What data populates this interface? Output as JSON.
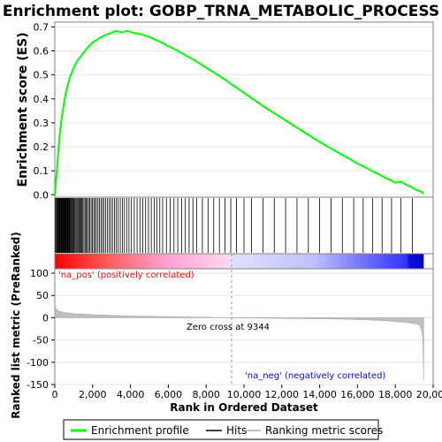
{
  "chart_data": {
    "type": "line",
    "title": "Enrichment plot: GOBP_TRNA_METABOLIC_PROCESS",
    "top_panel": {
      "ylabel": "Enrichment score (ES)",
      "ylim": [
        -0.01,
        0.72
      ],
      "yticks": [
        0.0,
        0.1,
        0.2,
        0.3,
        0.4,
        0.5,
        0.6,
        0.7
      ],
      "ytick_labels": [
        "0.0",
        "0.1",
        "0.2",
        "0.3",
        "0.4",
        "0.5",
        "0.6",
        "0.7"
      ],
      "series": [
        {
          "name": "Enrichment profile",
          "color": "#00ff00",
          "x": [
            0,
            100,
            200,
            300,
            400,
            500,
            600,
            700,
            800,
            900,
            1000,
            1200,
            1400,
            1600,
            1800,
            2000,
            2200,
            2400,
            2600,
            2800,
            3000,
            3200,
            3400,
            3600,
            3800,
            4000,
            4200,
            4400,
            4600,
            5000,
            5500,
            6000,
            6500,
            7000,
            7500,
            8000,
            8500,
            9000,
            9344,
            10000,
            11000,
            12000,
            13000,
            14000,
            15000,
            16000,
            17000,
            17500,
            18000,
            18300,
            18600,
            18900,
            19100,
            19300,
            19500
          ],
          "y": [
            0.0,
            0.09,
            0.2,
            0.28,
            0.34,
            0.39,
            0.43,
            0.46,
            0.49,
            0.51,
            0.53,
            0.56,
            0.58,
            0.6,
            0.62,
            0.635,
            0.645,
            0.655,
            0.663,
            0.67,
            0.675,
            0.683,
            0.68,
            0.677,
            0.684,
            0.679,
            0.674,
            0.672,
            0.668,
            0.658,
            0.64,
            0.62,
            0.6,
            0.578,
            0.555,
            0.53,
            0.505,
            0.48,
            0.46,
            0.425,
            0.37,
            0.32,
            0.27,
            0.22,
            0.175,
            0.13,
            0.09,
            0.07,
            0.05,
            0.055,
            0.04,
            0.03,
            0.02,
            0.015,
            0.005
          ]
        }
      ]
    },
    "bottom_panel": {
      "ylabel": "Ranked list metric (PreRanked)",
      "xlabel": "Rank in Ordered Dataset",
      "ylim": [
        -150,
        110
      ],
      "yticks": [
        100,
        50,
        0,
        -50,
        -100,
        -150
      ],
      "ytick_labels": [
        "100",
        "50",
        "0",
        "-50",
        "-100",
        "-150"
      ],
      "metric_profile": {
        "name": "Ranking metric scores",
        "color": "#bebebe",
        "x": [
          0,
          50,
          150,
          300,
          600,
          1000,
          2000,
          3000,
          4000,
          6000,
          8000,
          9344,
          11000,
          13000,
          15000,
          16500,
          17500,
          18500,
          19000,
          19300,
          19450,
          19500
        ],
        "y": [
          30,
          22,
          17,
          14,
          11,
          9,
          7,
          5.5,
          4,
          2.5,
          1.2,
          0,
          -1,
          -2,
          -3,
          -5,
          -7,
          -10,
          -13,
          -17,
          -40,
          -140
        ]
      },
      "annotations": {
        "zero_cross": "Zero cross at 9344",
        "pos_label": "'na_pos' (positively correlated)",
        "neg_label": "'na_neg' (negatively correlated)"
      },
      "pos_color": "#ff0000",
      "neg_color": "#0000ff"
    },
    "xlim": [
      0,
      20000
    ],
    "xticks": [
      0,
      2000,
      4000,
      6000,
      8000,
      10000,
      12000,
      14000,
      16000,
      18000,
      20000
    ],
    "xtick_labels": [
      "0",
      "2,000",
      "4,000",
      "6,000",
      "8,000",
      "10,000",
      "12,000",
      "14,000",
      "16,000",
      "18,000",
      "20,000"
    ],
    "n_genes": 19500,
    "hits": [
      40,
      80,
      110,
      150,
      180,
      210,
      240,
      270,
      300,
      330,
      360,
      390,
      420,
      450,
      480,
      510,
      540,
      570,
      600,
      630,
      660,
      690,
      720,
      750,
      790,
      830,
      870,
      910,
      950,
      990,
      1030,
      1080,
      1130,
      1180,
      1230,
      1280,
      1330,
      1380,
      1430,
      1480,
      1540,
      1600,
      1660,
      1720,
      1780,
      1850,
      1920,
      1990,
      2060,
      2130,
      2200,
      2280,
      2360,
      2440,
      2520,
      2600,
      2690,
      2780,
      2870,
      2960,
      3050,
      3150,
      3250,
      3350,
      3460,
      3570,
      3680,
      3800,
      3920,
      4050,
      4200,
      4350,
      4500,
      4650,
      4800,
      4950,
      5100,
      5250,
      5400,
      5550,
      5700,
      5900,
      6100,
      6300,
      6500,
      6700,
      6900,
      7100,
      7300,
      7500,
      7800,
      8100,
      8400,
      8700,
      9000,
      9300,
      9600,
      10000,
      10400,
      11000,
      11600,
      12200,
      12800,
      13400,
      14000,
      14600,
      15200,
      15800,
      16300,
      16800,
      17300,
      17800,
      18300,
      18900
    ]
  },
  "legend": {
    "items": [
      {
        "label": "Enrichment profile",
        "color": "#00ff00"
      },
      {
        "label": "Hits",
        "color": "#000000"
      },
      {
        "label": "Ranking metric scores",
        "color": "#bebebe"
      }
    ]
  }
}
